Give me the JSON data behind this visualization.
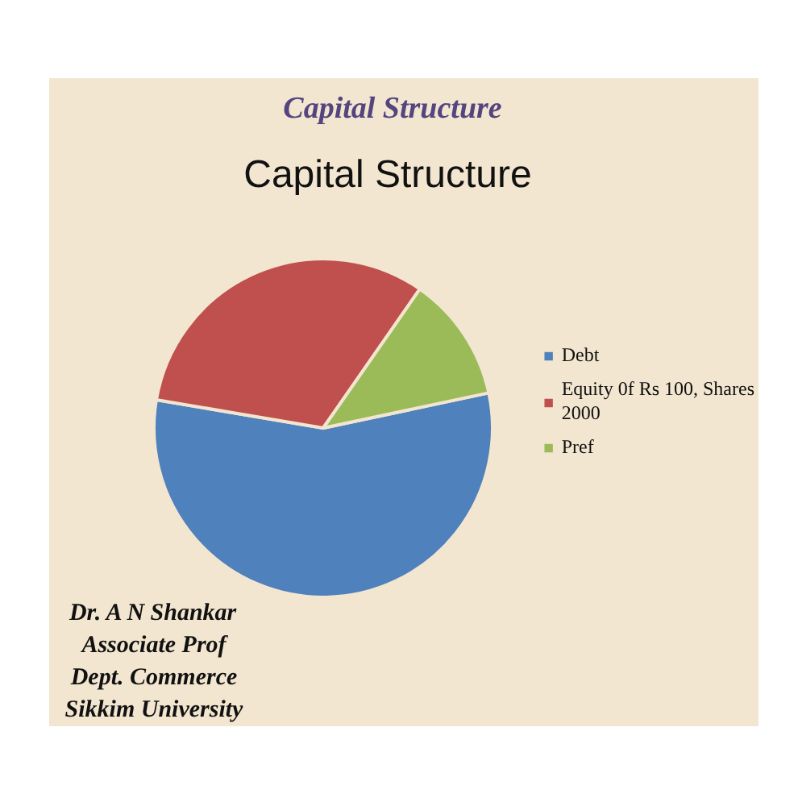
{
  "chart_data": {
    "type": "pie",
    "title": "Capital Structure",
    "annotations": [
      "Capital Structure",
      "Dr. A N Shankar\nAssociate Prof\nDept. Commerce\nSikkim University"
    ],
    "categories": [
      "Debt",
      "Equity 0f Rs 100, Shares 2000",
      "Pref"
    ],
    "values": [
      56,
      32,
      12
    ],
    "colors": [
      "#4f81bd",
      "#c0504d",
      "#9bbb59"
    ],
    "legend": "right"
  }
}
